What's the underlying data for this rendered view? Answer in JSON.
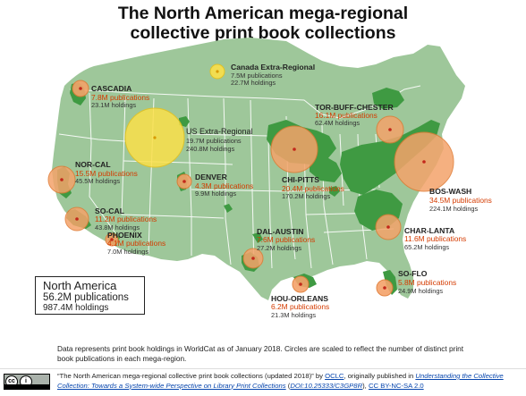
{
  "title_line1": "The North American mega-regional",
  "title_line2": "collective print book collections",
  "colors": {
    "land": "#9ec79a",
    "border": "#ffffff",
    "metro": "#3f9a42",
    "us_circle_fill": "#f4a36a",
    "us_circle_stroke": "#e07b34",
    "region_circle_fill": "#fbe04a",
    "region_circle_stroke": "#e6c21a",
    "pub_text": "#d43b00",
    "dot": "#c3281b"
  },
  "regions": [
    {
      "id": "cascadia",
      "name": "CASCADIA",
      "publications": "7.8M publications",
      "holdings": "23.1M holdings"
    },
    {
      "id": "canada",
      "name": "Canada Extra-Regional",
      "publications": "7.5M publications",
      "holdings": "22.7M holdings"
    },
    {
      "id": "tor-buff-chester",
      "name": "TOR-BUFF-CHESTER",
      "publications": "16.1M publications",
      "holdings": "62.4M holdings"
    },
    {
      "id": "us-extra",
      "name": "US Extra-Regional",
      "publications": "19.7M publications",
      "holdings": "240.8M holdings"
    },
    {
      "id": "nor-cal",
      "name": "NOR-CAL",
      "publications": "15.5M publications",
      "holdings": "45.5M holdings"
    },
    {
      "id": "denver",
      "name": "DENVER",
      "publications": "4.3M publications",
      "holdings": "9.9M holdings"
    },
    {
      "id": "chi-pitts",
      "name": "CHI-PITTS",
      "publications": "20.4M publications",
      "holdings": "170.2M holdings"
    },
    {
      "id": "bos-wash",
      "name": "BOS-WASH",
      "publications": "34.5M publications",
      "holdings": "224.1M holdings"
    },
    {
      "id": "so-cal",
      "name": "SO-CAL",
      "publications": "11.2M publications",
      "holdings": "43.8M holdings"
    },
    {
      "id": "phoenix",
      "name": "PHOENIX",
      "publications": "4.1M publications",
      "holdings": "7.0M holdings"
    },
    {
      "id": "dal-austin",
      "name": "DAL-AUSTIN",
      "publications": "7.6M publications",
      "holdings": "27.2M holdings"
    },
    {
      "id": "char-lanta",
      "name": "CHAR-LANTA",
      "publications": "11.6M publications",
      "holdings": "65.2M holdings"
    },
    {
      "id": "so-flo",
      "name": "SO-FLO",
      "publications": "5.8M publications",
      "holdings": "24.9M holdings"
    },
    {
      "id": "hou-orleans",
      "name": "HOU-ORLEANS",
      "publications": "6.2M publications",
      "holdings": "21.3M holdings"
    }
  ],
  "summary": {
    "name": "North America",
    "publications": "56.2M publications",
    "holdings": "987.4M holdings"
  },
  "note": "Data represents print book holdings in WorldCat as of January 2018. Circles are scaled to reflect the number of distinct print book publications in each mega-region.",
  "license_badge": "cc by nc",
  "credit": {
    "quote": "“The North American mega-regional collective print book collections (updated 2018)” by ",
    "oclc": "OCLC",
    "mid": ", originally published in ",
    "book": "Understanding the Collective Collection: Towards a System-wide Perspective on Library Print Collections",
    "open": " (",
    "doi": "DOI:10.25333/C3GP8R",
    "close": "), ",
    "license": "CC BY-NC-SA 2.0"
  }
}
